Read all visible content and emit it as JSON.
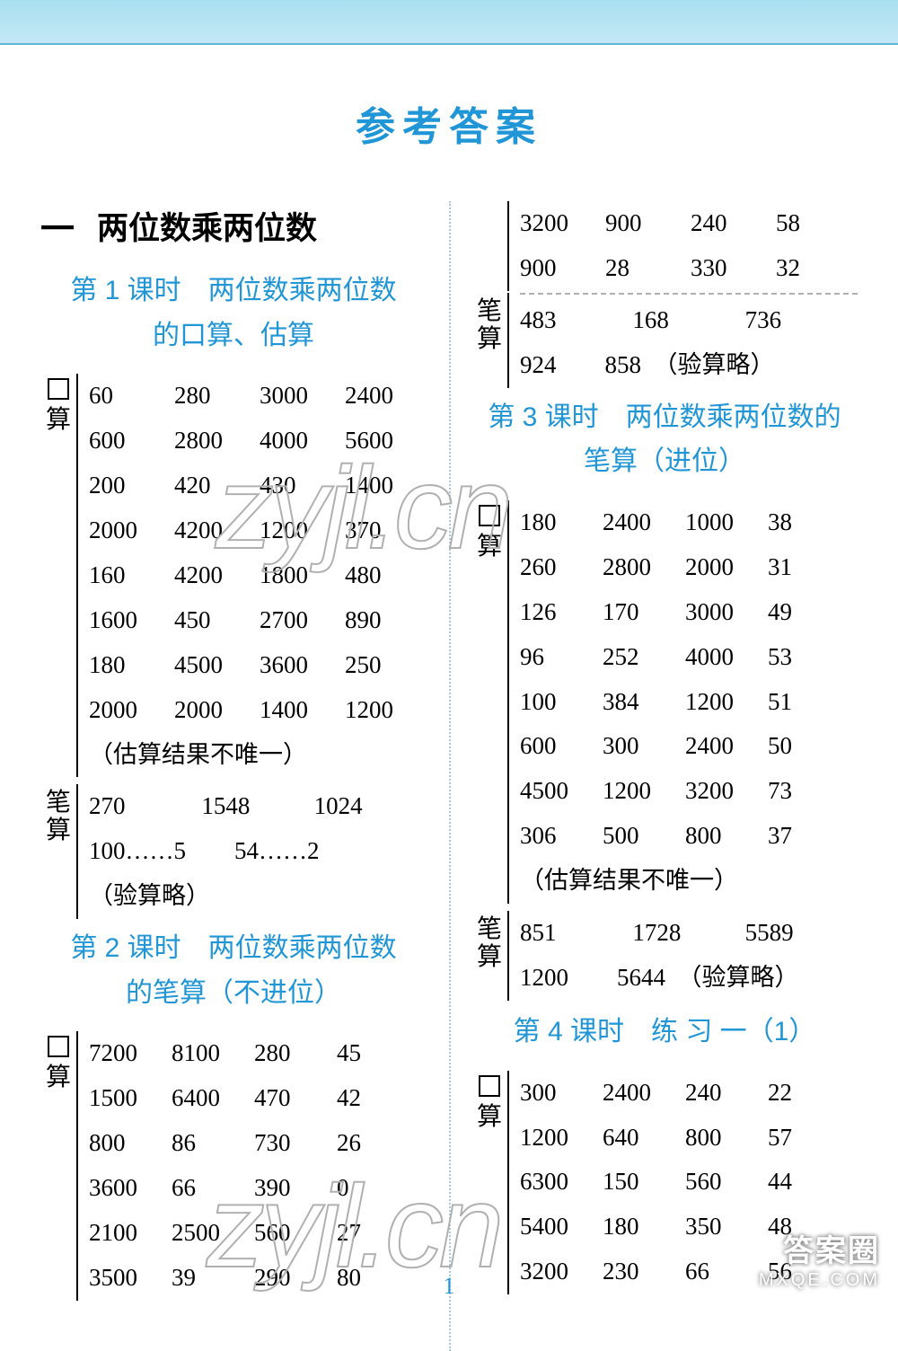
{
  "title": "参考答案",
  "chapter": {
    "num": "一",
    "text": "两位数乘两位数"
  },
  "lesson1": {
    "title_l1": "第 1 课时　两位数乘两位数",
    "title_l2": "的口算、估算",
    "kousuan_label": "口算",
    "kousuan_rows": [
      [
        "60",
        "280",
        "3000",
        "2400"
      ],
      [
        "600",
        "2800",
        "4000",
        "5600"
      ],
      [
        "200",
        "420",
        "430",
        "1400"
      ],
      [
        "2000",
        "4200",
        "1200",
        "370"
      ],
      [
        "160",
        "4200",
        "1800",
        "480"
      ],
      [
        "1600",
        "450",
        "2700",
        "890"
      ],
      [
        "180",
        "4500",
        "3600",
        "250"
      ],
      [
        "2000",
        "2000",
        "1400",
        "1200"
      ]
    ],
    "kousuan_note": "（估算结果不唯一）",
    "bisuan_label": "笔算",
    "bisuan_row1": [
      "270",
      "1548",
      "1024"
    ],
    "bisuan_row2": "100……5　　54……2",
    "bisuan_note": "（验算略）"
  },
  "lesson2": {
    "title_l1": "第 2 课时　两位数乘两位数",
    "title_l2": "的笔算（不进位）",
    "kousuan_label": "口算",
    "kousuan_rows": [
      [
        "7200",
        "8100",
        "280",
        "45"
      ],
      [
        "1500",
        "6400",
        "470",
        "42"
      ],
      [
        "800",
        "86",
        "730",
        "26"
      ],
      [
        "3600",
        "66",
        "390",
        "0"
      ],
      [
        "2100",
        "2500",
        "560",
        "27"
      ],
      [
        "3500",
        "39",
        "290",
        "80"
      ]
    ]
  },
  "lesson2cont": {
    "kousuan_rows": [
      [
        "3200",
        "900",
        "240",
        "58"
      ],
      [
        "900",
        "28",
        "330",
        "32"
      ]
    ],
    "bisuan_label": "笔算",
    "bisuan_row1": [
      "483",
      "168",
      "736"
    ],
    "bisuan_row2": "924　　858　（验算略）"
  },
  "lesson3": {
    "title_l1": "第 3 课时　两位数乘两位数的",
    "title_l2": "笔算（进位）",
    "kousuan_label": "口算",
    "kousuan_rows": [
      [
        "180",
        "2400",
        "1000",
        "38"
      ],
      [
        "260",
        "2800",
        "2000",
        "31"
      ],
      [
        "126",
        "170",
        "3000",
        "49"
      ],
      [
        "96",
        "252",
        "4000",
        "53"
      ],
      [
        "100",
        "384",
        "1200",
        "51"
      ],
      [
        "600",
        "300",
        "2400",
        "50"
      ],
      [
        "4500",
        "1200",
        "3200",
        "73"
      ],
      [
        "306",
        "500",
        "800",
        "37"
      ]
    ],
    "kousuan_note": "（估算结果不唯一）",
    "bisuan_label": "笔算",
    "bisuan_row1": [
      "851",
      "1728",
      "5589"
    ],
    "bisuan_row2": "1200　　5644　（验算略）"
  },
  "lesson4": {
    "title": "第 4 课时　练 习 一（1）",
    "kousuan_label": "口算",
    "kousuan_rows": [
      [
        "300",
        "2400",
        "240",
        "22"
      ],
      [
        "1200",
        "640",
        "800",
        "57"
      ],
      [
        "6300",
        "150",
        "560",
        "44"
      ],
      [
        "5400",
        "180",
        "350",
        "48"
      ],
      [
        "3200",
        "230",
        "66",
        "56"
      ]
    ]
  },
  "page_number": "1",
  "watermarks": {
    "w1": "zyjl.cn",
    "w2": "zyjl.cn"
  },
  "badge": {
    "top": "答案圈",
    "bottom": "MXQE.COM"
  }
}
